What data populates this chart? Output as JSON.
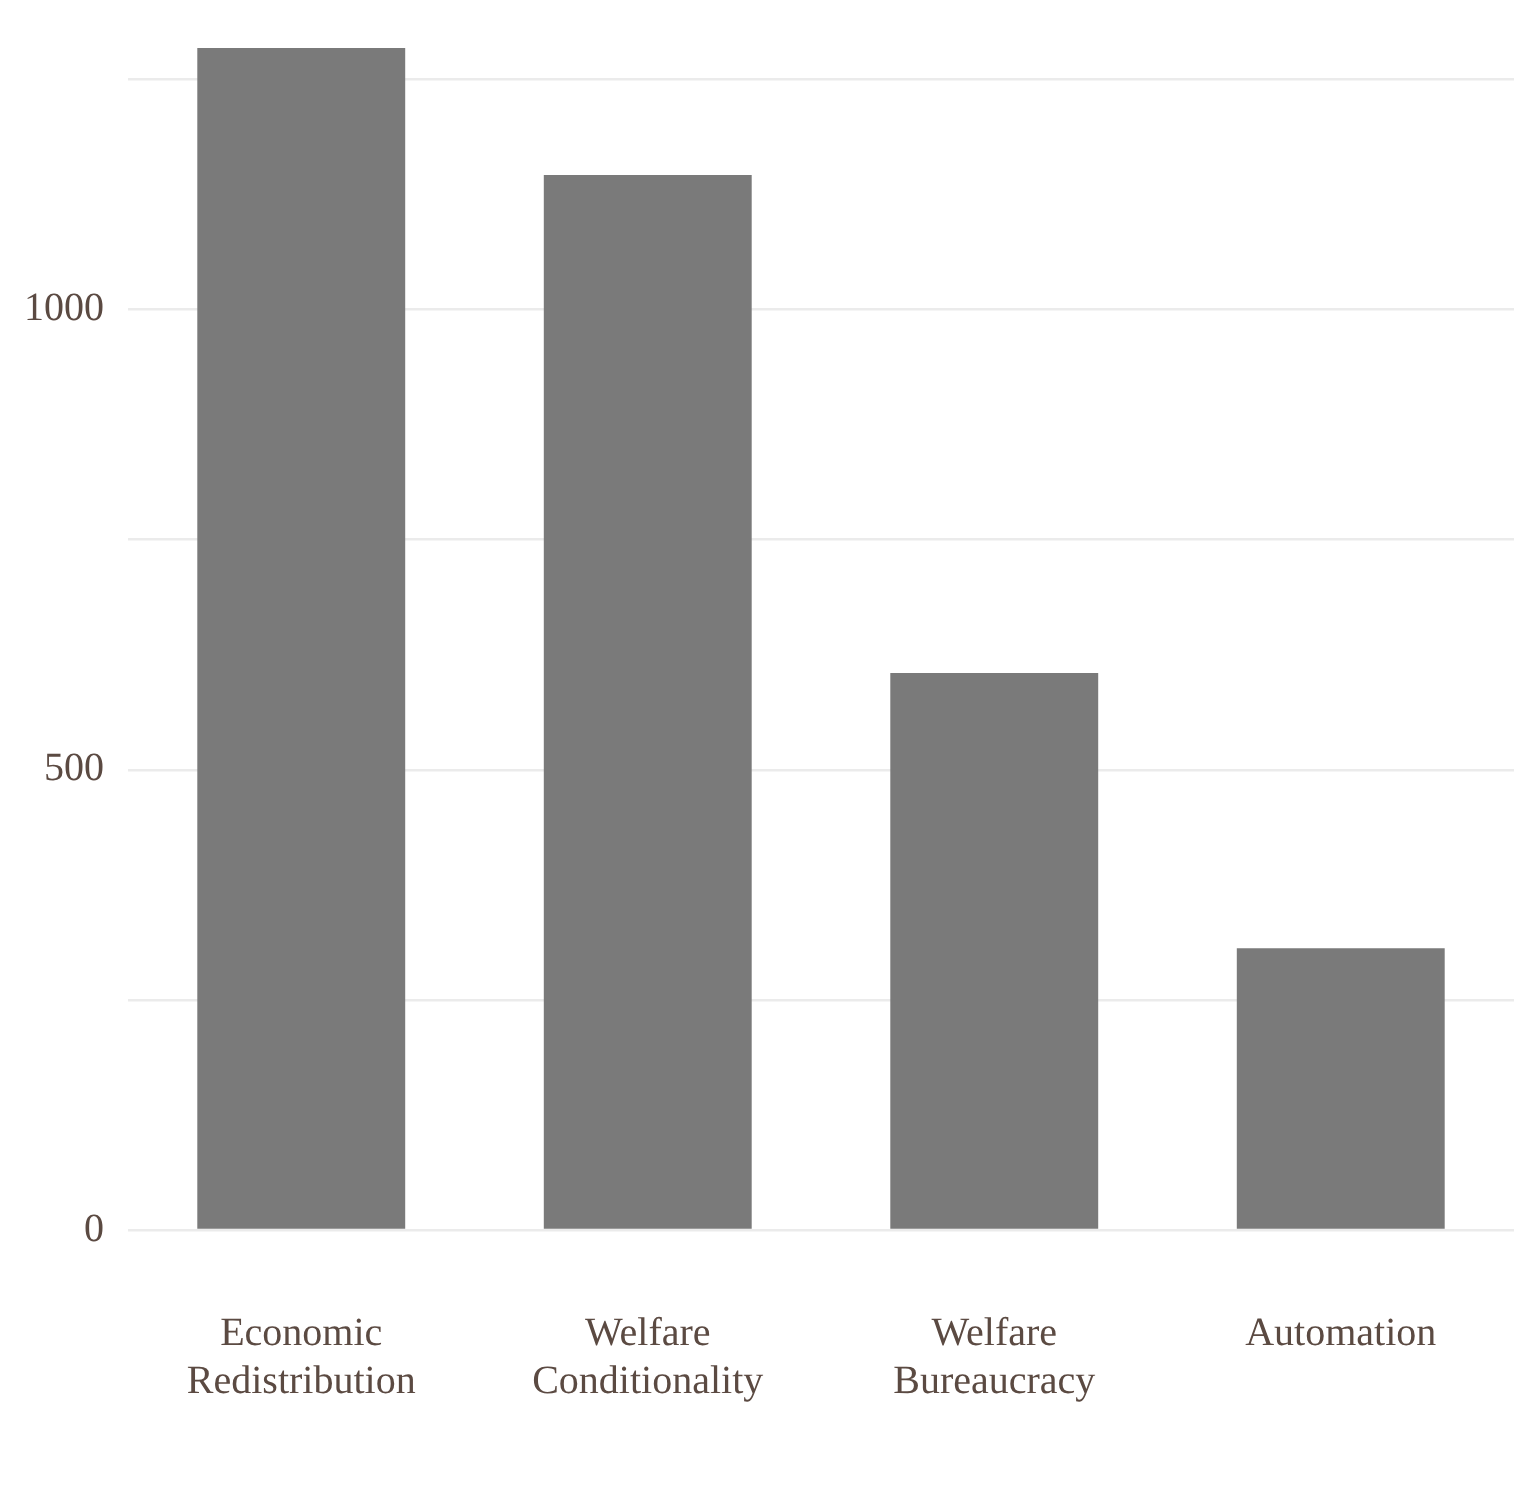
{
  "chart_data": {
    "type": "bar",
    "categories": [
      "Economic Redistribution",
      "Welfare Conditionality",
      "Welfare Bureaucracy",
      "Automation"
    ],
    "values": [
      1284,
      1146,
      605,
      306
    ],
    "color": "#7a7a7a",
    "ylim": [
      0,
      1284
    ],
    "yticks": [
      0,
      {
        "value": 250,
        "label": null
      },
      500,
      {
        "value": 750,
        "label": null
      },
      1000,
      {
        "value": 1250,
        "label": null
      }
    ],
    "grid": "y",
    "legend": false
  }
}
